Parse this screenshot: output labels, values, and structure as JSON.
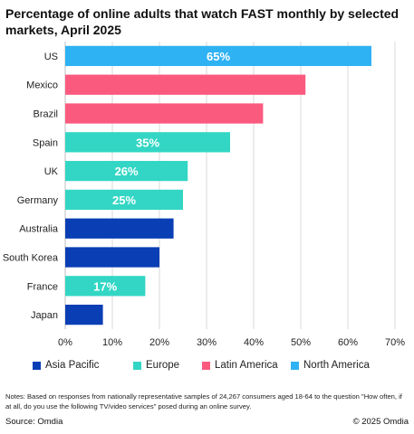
{
  "title": "Percentage of online adults that watch FAST monthly by selected markets, April 2025",
  "chart_data": {
    "type": "bar",
    "orientation": "horizontal",
    "title": "Percentage of online adults that watch FAST monthly by selected markets, April 2025",
    "categories": [
      "US",
      "Mexico",
      "Brazil",
      "Spain",
      "UK",
      "Germany",
      "Australia",
      "South Korea",
      "France",
      "Japan"
    ],
    "values": [
      65,
      51,
      42,
      35,
      26,
      25,
      23,
      20,
      17,
      8
    ],
    "regions": [
      "North America",
      "Latin America",
      "Latin America",
      "Europe",
      "Europe",
      "Europe",
      "Asia Pacific",
      "Asia Pacific",
      "Europe",
      "Asia Pacific"
    ],
    "data_labels": [
      "65%",
      "",
      "",
      "35%",
      "26%",
      "25%",
      "",
      "",
      "17%",
      ""
    ],
    "xlim": [
      0,
      70
    ],
    "x_ticks": [
      "0%",
      "10%",
      "20%",
      "30%",
      "40%",
      "50%",
      "60%",
      "70%"
    ],
    "grid": "vertical",
    "legend_position": "bottom",
    "legend": [
      {
        "name": "Asia Pacific",
        "color": "#0a3eb5"
      },
      {
        "name": "Europe",
        "color": "#33d6c4"
      },
      {
        "name": "Latin America",
        "color": "#fb5a7f"
      },
      {
        "name": "North America",
        "color": "#2fb2f3"
      }
    ]
  },
  "notes": "Notes: Based on responses from nationally representative samples of 24,267 consumers aged 18-64 to the question \"How often, if at all, do you use the following TV/video services\" posed  during an online survey.",
  "source": "Source: Omdia",
  "copyright": "© 2025 Omdia"
}
